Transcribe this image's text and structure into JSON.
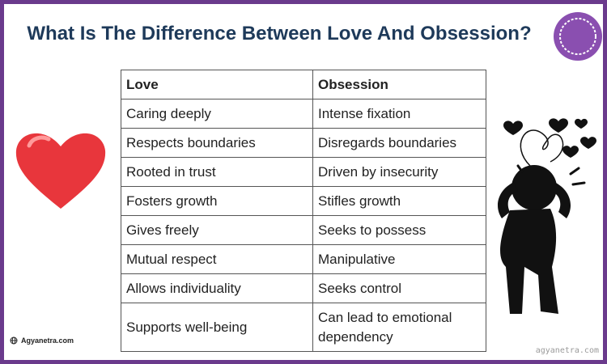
{
  "header": {
    "title": "What Is The Difference Between Love And Obsession?"
  },
  "table": {
    "columns": [
      "Love",
      "Obsession"
    ],
    "rows": [
      [
        "Caring deeply",
        "Intense fixation"
      ],
      [
        "Respects boundaries",
        "Disregards boundaries"
      ],
      [
        "Rooted in trust",
        "Driven by insecurity"
      ],
      [
        "Fosters growth",
        "Stifles growth"
      ],
      [
        "Gives freely",
        "Seeks to possess"
      ],
      [
        "Mutual respect",
        "Manipulative"
      ],
      [
        "Allows individuality",
        "Seeks control"
      ],
      [
        "Supports well-being",
        "Can lead to emotional dependency"
      ]
    ]
  },
  "footer": {
    "site": "Agyanetra.com",
    "watermark": "agyanetra.com"
  }
}
